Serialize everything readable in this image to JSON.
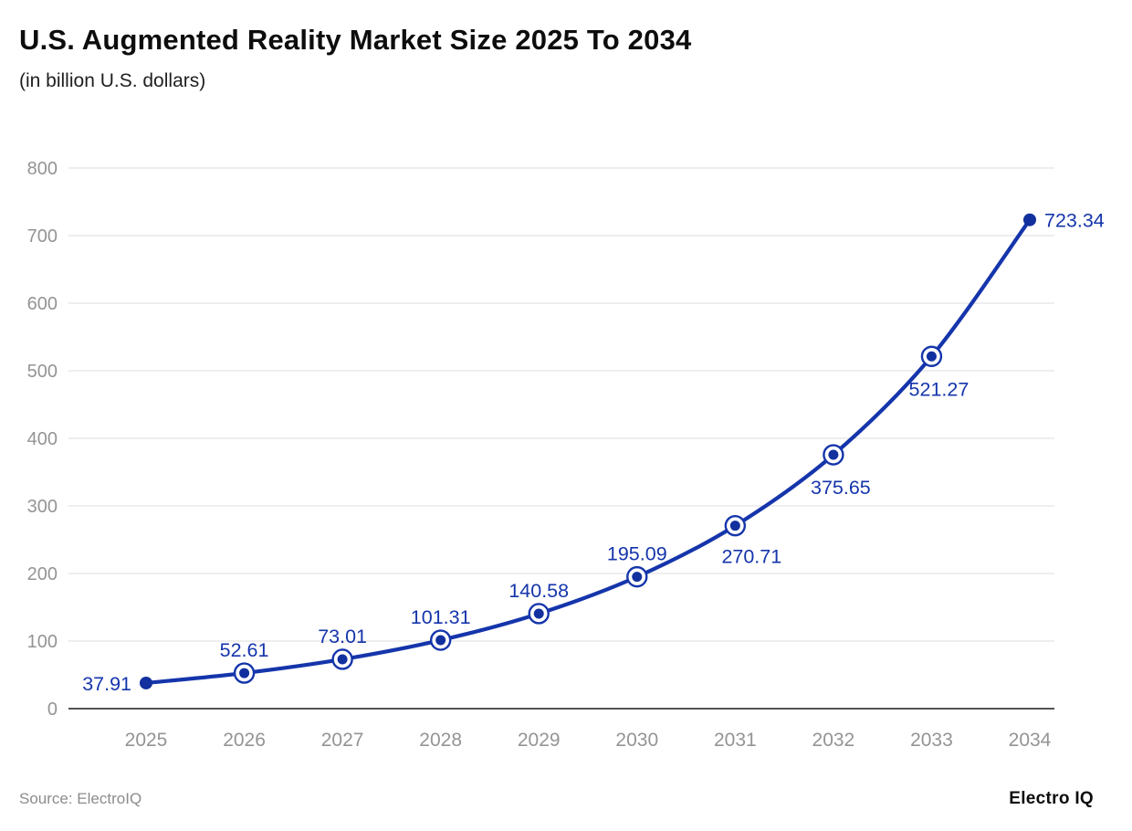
{
  "header": {
    "title": "U.S. Augmented Reality Market Size 2025 To 2034",
    "subtitle": "(in billion U.S. dollars)"
  },
  "footer": {
    "source": "Source: ElectroIQ",
    "logo": "Electro IQ"
  },
  "colors": {
    "line": "#1535ab",
    "value_label": "#1535ab",
    "axis_text": "#949494",
    "gridline": "#e3e3e3",
    "axis_line": "#1a1a1a",
    "marker_fill": "#12309e",
    "background": "#ffffff"
  },
  "chart_data": {
    "type": "line",
    "title": "U.S. Augmented Reality Market Size 2025 To 2034",
    "subtitle": "(in billion U.S. dollars)",
    "xlabel": "",
    "ylabel": "",
    "categories": [
      "2025",
      "2026",
      "2027",
      "2028",
      "2029",
      "2030",
      "2031",
      "2032",
      "2033",
      "2034"
    ],
    "values": [
      37.91,
      52.61,
      73.01,
      101.31,
      140.58,
      195.09,
      270.71,
      375.65,
      521.27,
      723.34
    ],
    "value_labels": [
      "37.91",
      "52.61",
      "73.01",
      "101.31",
      "140.58",
      "195.09",
      "270.71",
      "375.65",
      "521.27",
      "723.34"
    ],
    "ylim": [
      0,
      800
    ],
    "ytick_interval": 100,
    "ytick_labels": [
      "0",
      "100",
      "200",
      "300",
      "400",
      "500",
      "600",
      "700",
      "800"
    ],
    "grid": "horizontal",
    "legend": "none",
    "label_positions": [
      "left",
      "above",
      "above",
      "above",
      "above",
      "above",
      "below-right",
      "below",
      "below",
      "right"
    ],
    "marker_styles": [
      "dot",
      "ring",
      "ring",
      "ring",
      "ring",
      "ring",
      "ring",
      "ring",
      "ring",
      "dot"
    ]
  }
}
